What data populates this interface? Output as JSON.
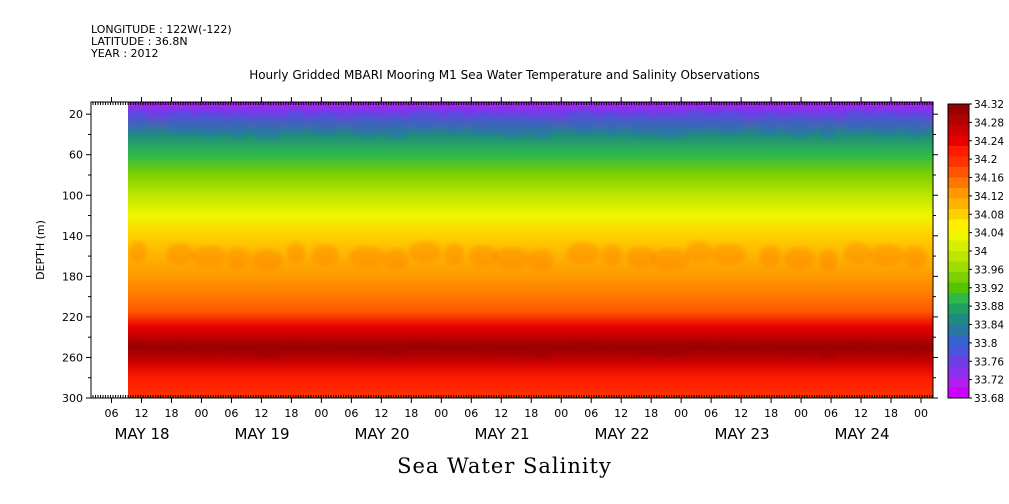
{
  "header": {
    "longitude": "LONGITUDE : 122W(-122)",
    "latitude": "LATITUDE : 36.8N",
    "year": "YEAR : 2012"
  },
  "chart_data": {
    "type": "heatmap",
    "title": "Hourly Gridded MBARI Mooring M1 Sea Water Temperature and Salinity Observations",
    "xlabel": "Sea Water Salinity",
    "ylabel": "DEPTH (m)",
    "y_ticks": [
      "20",
      "60",
      "100",
      "140",
      "180",
      "220",
      "260",
      "300"
    ],
    "ylim": [
      300,
      8
    ],
    "x_hour_ticks": [
      "06",
      "12",
      "18",
      "00",
      "06",
      "12",
      "18",
      "00",
      "06",
      "12",
      "18",
      "00",
      "06",
      "12",
      "18",
      "00",
      "06",
      "12",
      "18",
      "00",
      "06",
      "12",
      "18",
      "00",
      "06",
      "12",
      "18",
      "00"
    ],
    "x_day_labels": [
      "MAY 18",
      "MAY 19",
      "MAY 20",
      "MAY 21",
      "MAY 22",
      "MAY 23",
      "MAY 24"
    ],
    "colorbar_labels": [
      "34.32",
      "34.28",
      "34.24",
      "34.2",
      "34.16",
      "34.12",
      "34.08",
      "34.04",
      "34",
      "33.96",
      "33.92",
      "33.88",
      "33.84",
      "33.8",
      "33.76",
      "33.72",
      "33.68"
    ],
    "colorbar_colors": [
      "#990000",
      "#b30000",
      "#cc0000",
      "#e60000",
      "#ff1a00",
      "#ff3300",
      "#ff5500",
      "#ff7700",
      "#ff9900",
      "#ffb300",
      "#ffd000",
      "#ffee00",
      "#f0f500",
      "#d8f000",
      "#bce600",
      "#9fdc00",
      "#7fd000",
      "#55c400",
      "#2eb84a",
      "#1fa060",
      "#1f8a80",
      "#2a78a0",
      "#3366cc",
      "#4a55dd",
      "#6a40e6",
      "#8a30ee",
      "#b020f0",
      "#cc00ff"
    ],
    "profile": [
      {
        "depth": 8,
        "value": 33.72
      },
      {
        "depth": 20,
        "value": 33.76
      },
      {
        "depth": 40,
        "value": 33.84
      },
      {
        "depth": 60,
        "value": 33.9
      },
      {
        "depth": 80,
        "value": 33.94
      },
      {
        "depth": 100,
        "value": 33.98
      },
      {
        "depth": 120,
        "value": 34.04
      },
      {
        "depth": 140,
        "value": 34.08
      },
      {
        "depth": 160,
        "value": 34.11
      },
      {
        "depth": 180,
        "value": 34.12
      },
      {
        "depth": 200,
        "value": 34.14
      },
      {
        "depth": 215,
        "value": 34.18
      },
      {
        "depth": 230,
        "value": 34.24
      },
      {
        "depth": 250,
        "value": 34.3
      },
      {
        "depth": 265,
        "value": 34.26
      },
      {
        "depth": 280,
        "value": 34.22
      },
      {
        "depth": 300,
        "value": 34.2
      }
    ]
  }
}
